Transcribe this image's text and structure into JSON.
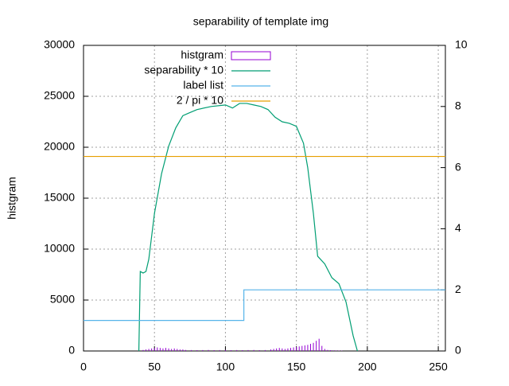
{
  "chart_data": {
    "type": "line",
    "title": "separability of template img",
    "ylabel": "histgram",
    "xlim": [
      0,
      255
    ],
    "xticks": [
      0,
      50,
      100,
      150,
      200,
      250
    ],
    "ylim": [
      0,
      30000
    ],
    "yticks": [
      0,
      5000,
      10000,
      15000,
      20000,
      25000,
      30000
    ],
    "y2lim": [
      0,
      10
    ],
    "y2ticks": [
      0,
      2,
      4,
      6,
      8,
      10
    ],
    "grid": true,
    "legend": "top",
    "series": [
      {
        "name": "histgram",
        "color": "#9400d3",
        "style": "impulses",
        "x": [
          42,
          44,
          46,
          48,
          50,
          52,
          54,
          56,
          58,
          60,
          62,
          64,
          66,
          68,
          70,
          72,
          76,
          80,
          84,
          88,
          92,
          96,
          100,
          104,
          108,
          112,
          116,
          120,
          124,
          128,
          132,
          134,
          136,
          138,
          140,
          142,
          144,
          146,
          148,
          150,
          152,
          154,
          156,
          158,
          160,
          162,
          164,
          166,
          168,
          170,
          172,
          174,
          176,
          178,
          180,
          182
        ],
        "values": [
          100,
          150,
          200,
          250,
          300,
          350,
          300,
          250,
          300,
          250,
          200,
          250,
          200,
          150,
          150,
          100,
          90,
          80,
          90,
          100,
          80,
          90,
          100,
          80,
          90,
          80,
          90,
          100,
          80,
          90,
          150,
          200,
          250,
          300,
          250,
          200,
          250,
          300,
          350,
          400,
          450,
          500,
          550,
          600,
          700,
          800,
          1000,
          1200,
          500,
          200,
          100,
          80,
          60,
          50,
          40,
          30
        ]
      },
      {
        "name": "separability * 10",
        "color": "#009e73",
        "axis": "y2",
        "style": "line",
        "x": [
          39,
          40,
          42,
          44,
          46,
          50,
          55,
          60,
          65,
          70,
          75,
          80,
          90,
          100,
          105,
          110,
          115,
          120,
          125,
          130,
          135,
          140,
          145,
          150,
          155,
          158,
          162,
          165,
          170,
          175,
          180,
          185,
          190,
          193
        ],
        "values": [
          0,
          2.6,
          2.55,
          2.6,
          3.0,
          4.5,
          5.8,
          6.7,
          7.3,
          7.7,
          7.8,
          7.9,
          8.0,
          8.05,
          7.95,
          8.1,
          8.1,
          8.05,
          8.0,
          7.9,
          7.65,
          7.5,
          7.45,
          7.35,
          6.8,
          6.0,
          4.5,
          3.1,
          2.85,
          2.4,
          2.2,
          1.6,
          0.5,
          0
        ]
      },
      {
        "name": "label list",
        "color": "#56b4e9",
        "axis": "y2",
        "style": "line",
        "x": [
          0,
          113,
          113,
          255
        ],
        "values": [
          1,
          1,
          2,
          2
        ]
      },
      {
        "name": "2 / pi * 10",
        "color": "#e69f00",
        "axis": "y2",
        "style": "line",
        "x": [
          0,
          255
        ],
        "values": [
          6.366,
          6.366
        ]
      }
    ]
  }
}
